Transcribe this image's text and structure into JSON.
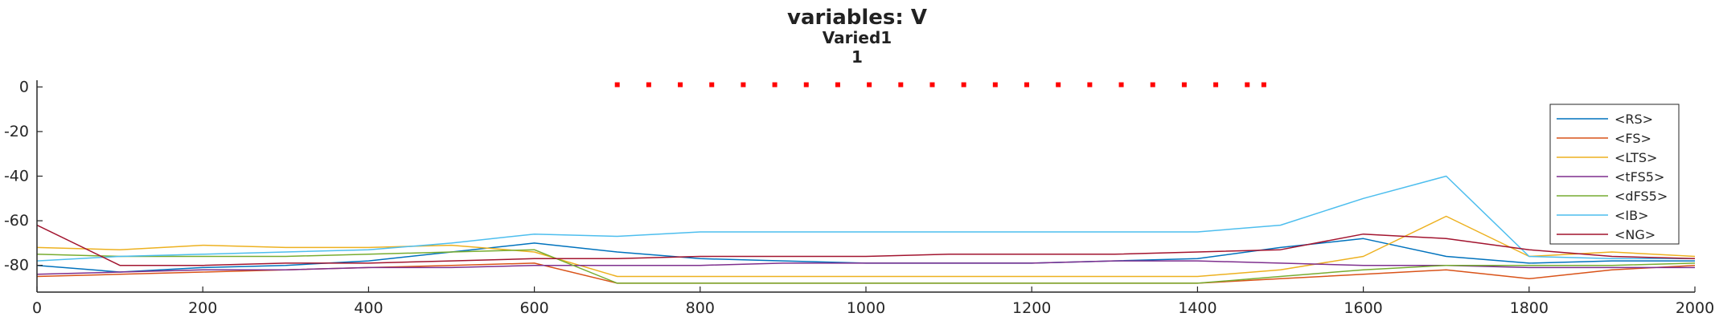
{
  "chart_data": {
    "type": "line",
    "title": "variables: V",
    "subtitle": "Varied1",
    "subtitle2": "1",
    "xlabel": "",
    "ylabel": "",
    "xlim": [
      0,
      2000
    ],
    "ylim": [
      -92,
      3
    ],
    "xticks": [
      0,
      200,
      400,
      600,
      800,
      1000,
      1200,
      1400,
      1600,
      1800,
      2000
    ],
    "yticks": [
      0,
      -20,
      -40,
      -60,
      -80
    ],
    "grid": false,
    "legend_position": "right",
    "stimulus_markers": {
      "color": "#ff0000",
      "y": 1,
      "x": [
        700,
        738,
        776,
        814,
        852,
        890,
        928,
        966,
        1004,
        1042,
        1080,
        1118,
        1156,
        1194,
        1232,
        1270,
        1308,
        1346,
        1384,
        1422,
        1460,
        1480
      ]
    },
    "series": [
      {
        "name": "<RS>",
        "color": "#0072bd",
        "x": [
          0,
          100,
          200,
          300,
          400,
          500,
          600,
          700,
          800,
          900,
          1000,
          1100,
          1200,
          1300,
          1400,
          1500,
          1600,
          1700,
          1800,
          1900,
          2000
        ],
        "values": [
          -80,
          -83,
          -81,
          -80,
          -78,
          -74,
          -70,
          -74,
          -77,
          -78,
          -79,
          -79,
          -79,
          -78,
          -77,
          -72,
          -68,
          -76,
          -79,
          -78,
          -78
        ]
      },
      {
        "name": "<FS>",
        "color": "#d95319",
        "x": [
          0,
          100,
          200,
          300,
          400,
          500,
          600,
          700,
          800,
          900,
          1000,
          1100,
          1200,
          1300,
          1400,
          1500,
          1600,
          1700,
          1800,
          1900,
          2000
        ],
        "values": [
          -85,
          -84,
          -83,
          -82,
          -81,
          -80,
          -79,
          -88,
          -88,
          -88,
          -88,
          -88,
          -88,
          -88,
          -88,
          -86,
          -84,
          -82,
          -86,
          -82,
          -80
        ]
      },
      {
        "name": "<LTS>",
        "color": "#edb120",
        "x": [
          0,
          100,
          200,
          300,
          400,
          500,
          600,
          700,
          800,
          900,
          1000,
          1100,
          1200,
          1300,
          1400,
          1500,
          1600,
          1700,
          1800,
          1900,
          2000
        ],
        "values": [
          -72,
          -73,
          -71,
          -72,
          -72,
          -71,
          -74,
          -85,
          -85,
          -85,
          -85,
          -85,
          -85,
          -85,
          -85,
          -82,
          -76,
          -58,
          -76,
          -74,
          -76
        ]
      },
      {
        "name": "<tFS5>",
        "color": "#7e2f8e",
        "x": [
          0,
          100,
          200,
          300,
          400,
          500,
          600,
          700,
          800,
          900,
          1000,
          1100,
          1200,
          1300,
          1400,
          1500,
          1600,
          1700,
          1800,
          1900,
          2000
        ],
        "values": [
          -84,
          -83,
          -82,
          -82,
          -81,
          -81,
          -80,
          -80,
          -80,
          -79,
          -79,
          -79,
          -79,
          -78,
          -78,
          -79,
          -80,
          -80,
          -81,
          -81,
          -81
        ]
      },
      {
        "name": "<dFS5>",
        "color": "#77ac30",
        "x": [
          0,
          100,
          200,
          300,
          400,
          500,
          600,
          700,
          800,
          900,
          1000,
          1100,
          1200,
          1300,
          1400,
          1500,
          1600,
          1700,
          1800,
          1900,
          2000
        ],
        "values": [
          -75,
          -76,
          -76,
          -76,
          -75,
          -74,
          -73,
          -88,
          -88,
          -88,
          -88,
          -88,
          -88,
          -88,
          -88,
          -85,
          -82,
          -80,
          -80,
          -80,
          -79
        ]
      },
      {
        "name": "<IB>",
        "color": "#4dbeee",
        "x": [
          0,
          100,
          200,
          300,
          400,
          500,
          600,
          700,
          800,
          900,
          1000,
          1100,
          1200,
          1300,
          1400,
          1500,
          1600,
          1700,
          1800,
          1900,
          2000
        ],
        "values": [
          -78,
          -76,
          -75,
          -74,
          -73,
          -70,
          -66,
          -67,
          -65,
          -65,
          -65,
          -65,
          -65,
          -65,
          -65,
          -62,
          -50,
          -40,
          -76,
          -77,
          -77
        ]
      },
      {
        "name": "<NG>",
        "color": "#a2142f",
        "x": [
          0,
          100,
          200,
          300,
          400,
          500,
          600,
          700,
          800,
          900,
          1000,
          1100,
          1200,
          1300,
          1400,
          1500,
          1600,
          1700,
          1800,
          1900,
          2000
        ],
        "values": [
          -62,
          -80,
          -80,
          -79,
          -79,
          -78,
          -77,
          -77,
          -76,
          -76,
          -76,
          -75,
          -75,
          -75,
          -74,
          -73,
          -66,
          -68,
          -73,
          -76,
          -77
        ]
      }
    ]
  }
}
